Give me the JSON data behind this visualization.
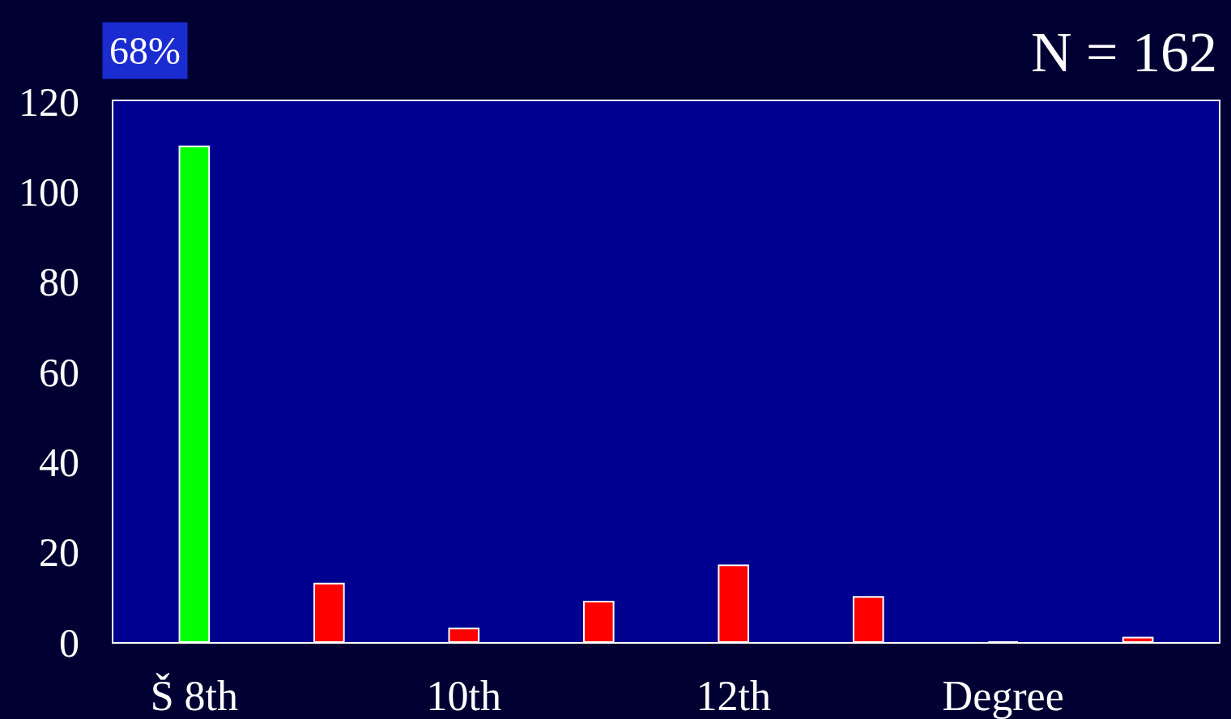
{
  "chart_data": {
    "type": "bar",
    "categories": [
      "Š 8th",
      null,
      "10th",
      null,
      "12th",
      null,
      "Degree",
      null
    ],
    "values": [
      110,
      13,
      3,
      9,
      17,
      10,
      0,
      1
    ],
    "colors": [
      "#00ff00",
      "#ff0000",
      "#ff0000",
      "#ff0000",
      "#ff0000",
      "#ff0000",
      "#ff0000",
      "#ff0000"
    ],
    "ylim": [
      0,
      120
    ],
    "yticks": [
      0,
      20,
      40,
      60,
      80,
      100,
      120
    ],
    "grid": false,
    "annotations": [
      "68%",
      "N = 162"
    ]
  }
}
